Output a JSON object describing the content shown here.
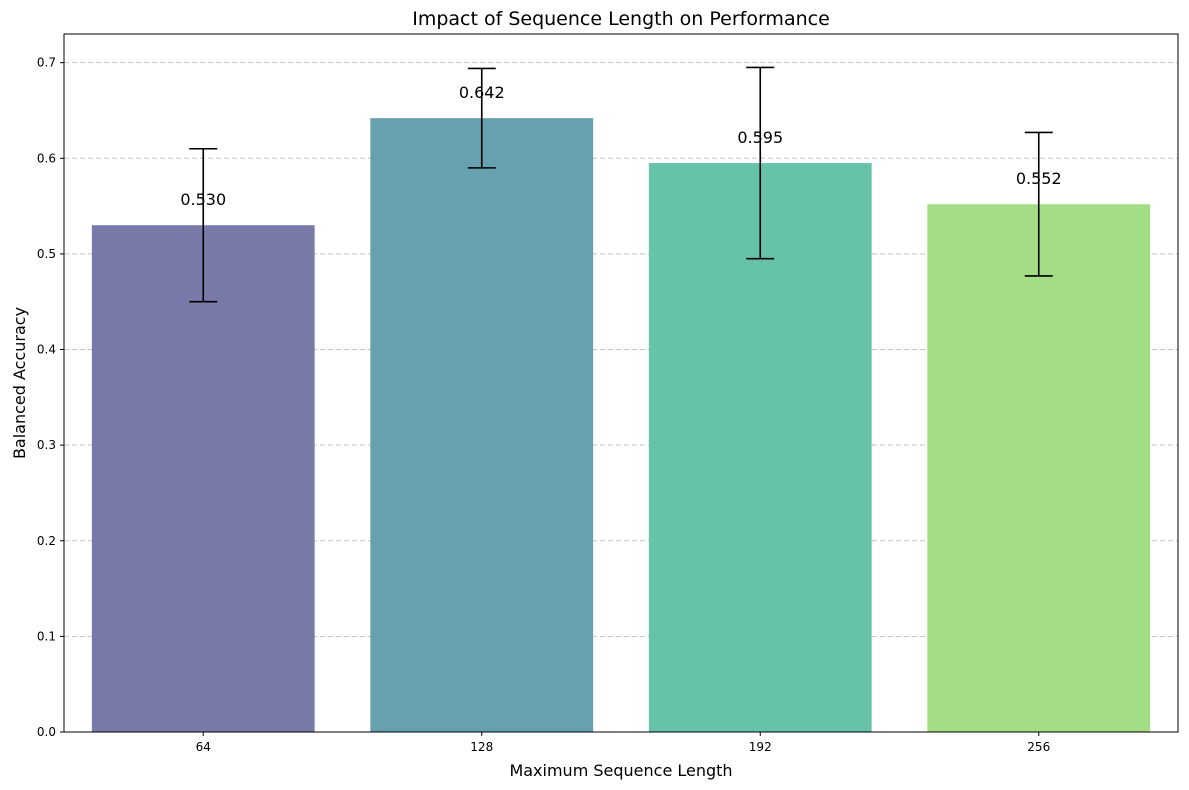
{
  "chart_data": {
    "type": "bar",
    "title": "Impact of Sequence Length on Performance",
    "xlabel": "Maximum Sequence Length",
    "ylabel": "Balanced Accuracy",
    "categories": [
      "64",
      "128",
      "192",
      "256"
    ],
    "values": [
      0.53,
      0.642,
      0.595,
      0.552
    ],
    "value_labels": [
      "0.530",
      "0.642",
      "0.595",
      "0.552"
    ],
    "error": [
      0.08,
      0.052,
      0.1,
      0.075
    ],
    "colors": [
      "#7a7aaa",
      "#67a0af",
      "#66c2a8",
      "#a3dd86"
    ],
    "ylim": [
      0,
      0.73
    ],
    "yticks": [
      0.0,
      0.1,
      0.2,
      0.3,
      0.4,
      0.5,
      0.6,
      0.7
    ],
    "ytick_labels": [
      "0.0",
      "0.1",
      "0.2",
      "0.3",
      "0.4",
      "0.5",
      "0.6",
      "0.7"
    ],
    "grid": "horizontal dashed",
    "legend": "none"
  }
}
